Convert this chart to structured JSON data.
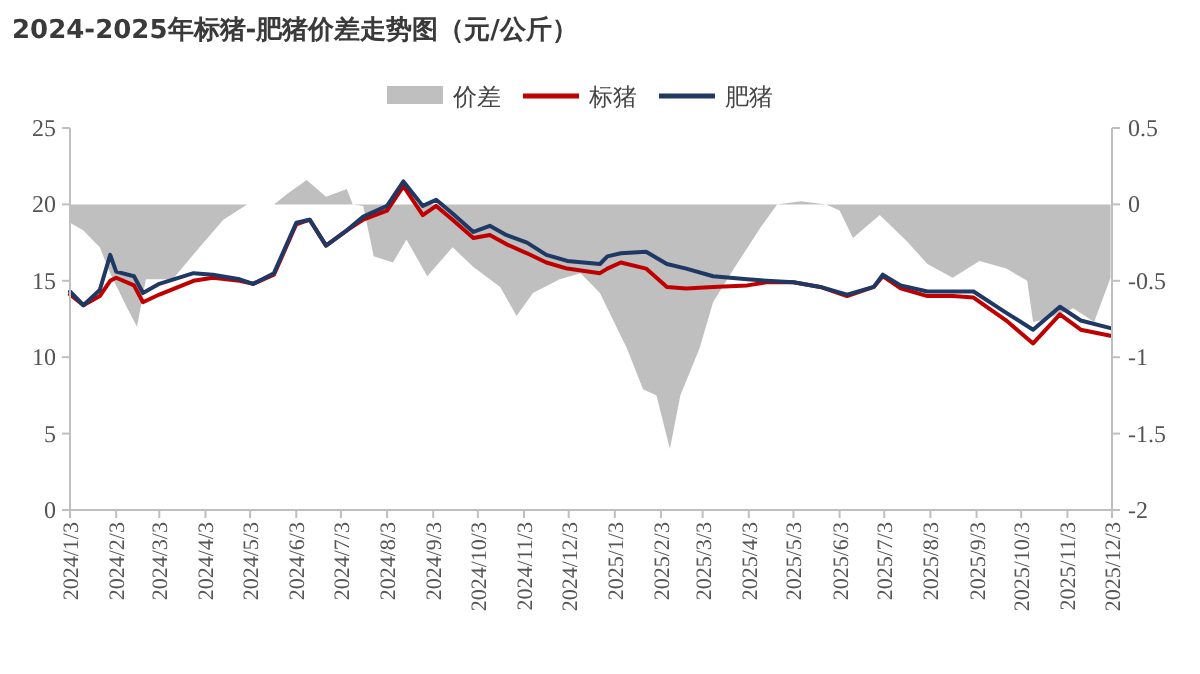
{
  "chart_data": {
    "type": "line",
    "title": "2024-2025年标猪-肥猪价差走势图（元/公斤）",
    "legend": "top",
    "xlim": [
      "2024-01-03",
      "2025-12-03"
    ],
    "xticks": [
      {
        "value": "2024-01-03",
        "label": "2024/1/3"
      },
      {
        "value": "2024-02-03",
        "label": "2024/2/3"
      },
      {
        "value": "2024-03-03",
        "label": "2024/3/3"
      },
      {
        "value": "2024-04-03",
        "label": "2024/4/3"
      },
      {
        "value": "2024-05-03",
        "label": "2024/5/3"
      },
      {
        "value": "2024-06-03",
        "label": "2024/6/3"
      },
      {
        "value": "2024-07-03",
        "label": "2024/7/3"
      },
      {
        "value": "2024-08-03",
        "label": "2024/8/3"
      },
      {
        "value": "2024-09-03",
        "label": "2024/9/3"
      },
      {
        "value": "2024-10-03",
        "label": "2024/10/3"
      },
      {
        "value": "2024-11-03",
        "label": "2024/11/3"
      },
      {
        "value": "2024-12-03",
        "label": "2024/12/3"
      },
      {
        "value": "2025-01-03",
        "label": "2025/1/3"
      },
      {
        "value": "2025-02-03",
        "label": "2025/2/3"
      },
      {
        "value": "2025-03-03",
        "label": "2025/3/3"
      },
      {
        "value": "2025-04-03",
        "label": "2025/4/3"
      },
      {
        "value": "2025-05-03",
        "label": "2025/5/3"
      },
      {
        "value": "2025-06-03",
        "label": "2025/6/3"
      },
      {
        "value": "2025-07-03",
        "label": "2025/7/3"
      },
      {
        "value": "2025-08-03",
        "label": "2025/8/3"
      },
      {
        "value": "2025-09-03",
        "label": "2025/9/3"
      },
      {
        "value": "2025-10-03",
        "label": "2025/10/3"
      },
      {
        "value": "2025-11-03",
        "label": "2025/11/3"
      },
      {
        "value": "2025-12-03",
        "label": "2025/12/3"
      }
    ],
    "ylim": [
      0,
      25
    ],
    "yticks": [
      0,
      5,
      10,
      15,
      20,
      25
    ],
    "y2lim": [
      -2,
      0.5
    ],
    "y2ticks": [
      -2,
      -1.5,
      -1,
      -0.5,
      0,
      0.5
    ],
    "series": [
      {
        "name": "价差",
        "type": "area",
        "axis": "y2",
        "color": "#bfbfbf",
        "x": [
          "2024-01-03",
          "2024-01-12",
          "2024-01-23",
          "2024-01-30",
          "2024-02-10",
          "2024-02-17",
          "2024-02-23",
          "2024-03-12",
          "2024-03-30",
          "2024-04-15",
          "2024-05-01",
          "2024-05-19",
          "2024-05-28",
          "2024-06-10",
          "2024-06-23",
          "2024-07-07",
          "2024-07-11",
          "2024-07-18",
          "2024-07-25",
          "2024-08-07",
          "2024-08-16",
          "2024-08-30",
          "2024-09-16",
          "2024-09-30",
          "2024-10-18",
          "2024-10-29",
          "2024-11-09",
          "2024-11-27",
          "2024-12-11",
          "2024-12-24",
          "2024-12-31",
          "2025-01-11",
          "2025-01-22",
          "2025-01-31",
          "2025-02-09",
          "2025-02-16",
          "2025-03-01",
          "2025-03-10",
          "2025-03-24",
          "2025-04-11",
          "2025-04-22",
          "2025-05-08",
          "2025-05-25",
          "2025-06-03",
          "2025-06-12",
          "2025-06-30",
          "2025-07-18",
          "2025-08-01",
          "2025-08-18",
          "2025-09-05",
          "2025-09-23",
          "2025-10-07",
          "2025-10-11",
          "2025-10-20",
          "2025-11-07",
          "2025-11-21",
          "2025-12-02"
        ],
        "values": [
          -0.12,
          -0.17,
          -0.28,
          -0.45,
          -0.67,
          -0.8,
          -0.49,
          -0.49,
          -0.28,
          -0.1,
          0,
          0,
          0.07,
          0.16,
          0.05,
          0.1,
          0,
          -0.01,
          -0.34,
          -0.38,
          -0.23,
          -0.47,
          -0.28,
          -0.41,
          -0.54,
          -0.73,
          -0.58,
          -0.49,
          -0.45,
          -0.58,
          -0.72,
          -0.94,
          -1.21,
          -1.25,
          -1.6,
          -1.25,
          -0.94,
          -0.64,
          -0.42,
          -0.15,
          0,
          0.02,
          0,
          -0.04,
          -0.22,
          -0.07,
          -0.24,
          -0.39,
          -0.48,
          -0.37,
          -0.42,
          -0.5,
          -0.77,
          -0.75,
          -0.68,
          -0.77,
          -0.48
        ]
      },
      {
        "name": "标猪",
        "color": "#c00000",
        "x": [
          "2024-01-03",
          "2024-01-12",
          "2024-01-23",
          "2024-01-30",
          "2024-02-03",
          "2024-02-15",
          "2024-02-21",
          "2024-03-03",
          "2024-03-26",
          "2024-04-08",
          "2024-04-26",
          "2024-05-05",
          "2024-05-19",
          "2024-06-03",
          "2024-06-12",
          "2024-06-23",
          "2024-07-07",
          "2024-07-18",
          "2024-08-03",
          "2024-08-14",
          "2024-08-27",
          "2024-09-05",
          "2024-09-16",
          "2024-09-30",
          "2024-10-11",
          "2024-10-22",
          "2024-11-05",
          "2024-11-18",
          "2024-12-02",
          "2024-12-24",
          "2024-12-29",
          "2025-01-07",
          "2025-01-24",
          "2025-02-07",
          "2025-02-20",
          "2025-03-10",
          "2025-04-02",
          "2025-04-15",
          "2025-05-03",
          "2025-05-21",
          "2025-06-08",
          "2025-06-26",
          "2025-07-02",
          "2025-07-14",
          "2025-08-01",
          "2025-08-18",
          "2025-09-01",
          "2025-09-23",
          "2025-10-11",
          "2025-10-29",
          "2025-11-12",
          "2025-12-02"
        ],
        "values": [
          14.1,
          13.4,
          14.0,
          15.0,
          15.2,
          14.7,
          13.6,
          14.1,
          15.0,
          15.2,
          15.0,
          14.8,
          15.4,
          18.7,
          19.0,
          17.3,
          18.3,
          19.0,
          19.6,
          21.2,
          19.3,
          19.9,
          19.0,
          17.8,
          18.0,
          17.4,
          16.8,
          16.2,
          15.8,
          15.5,
          15.8,
          16.2,
          15.8,
          14.6,
          14.5,
          14.6,
          14.7,
          14.9,
          14.9,
          14.6,
          14.0,
          14.6,
          15.3,
          14.5,
          14.0,
          14.0,
          13.9,
          12.4,
          10.9,
          12.8,
          11.8,
          11.4
        ]
      },
      {
        "name": "肥猪",
        "color": "#1f3864",
        "x": [
          "2024-01-03",
          "2024-01-12",
          "2024-01-23",
          "2024-01-30",
          "2024-02-03",
          "2024-02-15",
          "2024-02-21",
          "2024-03-03",
          "2024-03-26",
          "2024-04-08",
          "2024-04-26",
          "2024-05-05",
          "2024-05-19",
          "2024-06-03",
          "2024-06-12",
          "2024-06-23",
          "2024-07-07",
          "2024-07-18",
          "2024-08-03",
          "2024-08-14",
          "2024-08-27",
          "2024-09-05",
          "2024-09-16",
          "2024-09-30",
          "2024-10-11",
          "2024-10-22",
          "2024-11-05",
          "2024-11-18",
          "2024-12-02",
          "2024-12-24",
          "2024-12-29",
          "2025-01-07",
          "2025-01-24",
          "2025-02-07",
          "2025-02-20",
          "2025-03-10",
          "2025-04-02",
          "2025-04-15",
          "2025-05-03",
          "2025-05-21",
          "2025-06-08",
          "2025-06-26",
          "2025-07-02",
          "2025-07-14",
          "2025-08-01",
          "2025-08-18",
          "2025-09-01",
          "2025-09-23",
          "2025-10-11",
          "2025-10-29",
          "2025-11-12",
          "2025-12-02"
        ],
        "values": [
          14.3,
          13.4,
          14.4,
          16.7,
          15.6,
          15.3,
          14.2,
          14.8,
          15.5,
          15.4,
          15.1,
          14.8,
          15.5,
          18.8,
          19.0,
          17.3,
          18.3,
          19.2,
          19.9,
          21.5,
          19.9,
          20.3,
          19.4,
          18.2,
          18.6,
          18.0,
          17.5,
          16.7,
          16.3,
          16.1,
          16.6,
          16.8,
          16.9,
          16.1,
          15.8,
          15.3,
          15.1,
          15.0,
          14.9,
          14.6,
          14.1,
          14.6,
          15.4,
          14.7,
          14.3,
          14.3,
          14.3,
          12.9,
          11.8,
          13.3,
          12.4,
          11.9
        ]
      }
    ]
  }
}
